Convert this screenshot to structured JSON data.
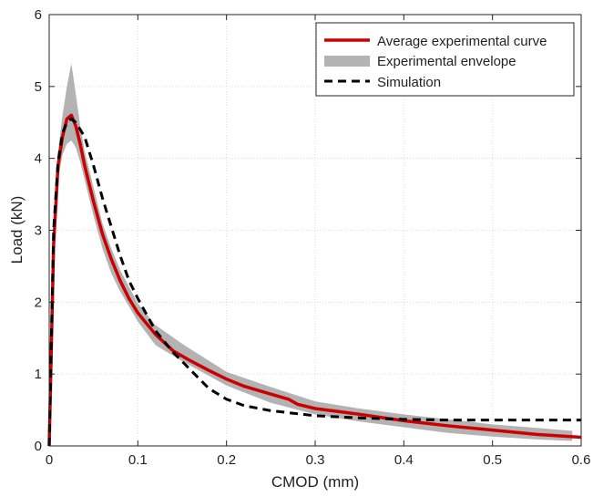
{
  "chart_data": {
    "type": "line",
    "title": "",
    "xlabel": "CMOD (mm)",
    "ylabel": "Load (kN)",
    "xlim": [
      0,
      0.6
    ],
    "ylim": [
      0,
      6
    ],
    "xticks": [
      0,
      0.1,
      0.2,
      0.3,
      0.4,
      0.5,
      0.6
    ],
    "yticks": [
      0,
      1,
      2,
      3,
      4,
      5,
      6
    ],
    "xtick_labels": [
      "0",
      "0.1",
      "0.2",
      "0.3",
      "0.4",
      "0.5",
      "0.6"
    ],
    "ytick_labels": [
      "0",
      "1",
      "2",
      "3",
      "4",
      "5",
      "6"
    ],
    "grid": true,
    "legend_position": "top-right",
    "series": [
      {
        "name": "Average experimental curve",
        "style": "solid",
        "color": "#cc0000",
        "x": [
          0,
          0.005,
          0.01,
          0.015,
          0.02,
          0.025,
          0.03,
          0.035,
          0.04,
          0.05,
          0.06,
          0.07,
          0.08,
          0.09,
          0.1,
          0.12,
          0.14,
          0.16,
          0.18,
          0.2,
          0.22,
          0.25,
          0.27,
          0.28,
          0.3,
          0.35,
          0.4,
          0.45,
          0.5,
          0.55,
          0.6
        ],
        "y": [
          0,
          2.8,
          3.9,
          4.3,
          4.55,
          4.6,
          4.45,
          4.2,
          3.9,
          3.4,
          2.95,
          2.6,
          2.3,
          2.05,
          1.85,
          1.55,
          1.32,
          1.18,
          1.05,
          0.93,
          0.83,
          0.72,
          0.65,
          0.58,
          0.52,
          0.44,
          0.35,
          0.28,
          0.22,
          0.16,
          0.12
        ]
      },
      {
        "name": "Experimental envelope",
        "style": "band",
        "color": "#b3b3b3",
        "x": [
          0,
          0.005,
          0.01,
          0.015,
          0.02,
          0.025,
          0.03,
          0.035,
          0.04,
          0.05,
          0.06,
          0.07,
          0.08,
          0.1,
          0.12,
          0.15,
          0.2,
          0.25,
          0.3,
          0.35,
          0.4,
          0.45,
          0.5,
          0.55,
          0.59
        ],
        "upper": [
          0,
          3.0,
          4.1,
          4.6,
          5.0,
          5.32,
          4.9,
          4.45,
          4.1,
          3.6,
          3.1,
          2.75,
          2.45,
          1.98,
          1.68,
          1.42,
          1.03,
          0.82,
          0.62,
          0.52,
          0.44,
          0.37,
          0.3,
          0.25,
          0.21
        ],
        "lower": [
          0,
          2.6,
          3.7,
          4.05,
          4.2,
          4.25,
          4.15,
          3.95,
          3.7,
          3.2,
          2.75,
          2.4,
          2.15,
          1.73,
          1.4,
          1.18,
          0.84,
          0.6,
          0.44,
          0.34,
          0.26,
          0.18,
          0.13,
          0.09,
          0.07
        ]
      },
      {
        "name": "Simulation",
        "style": "dashed",
        "color": "#000000",
        "x": [
          0,
          0.005,
          0.01,
          0.015,
          0.02,
          0.025,
          0.03,
          0.04,
          0.05,
          0.06,
          0.07,
          0.08,
          0.09,
          0.1,
          0.12,
          0.14,
          0.16,
          0.18,
          0.2,
          0.22,
          0.25,
          0.3,
          0.35,
          0.4,
          0.45,
          0.5,
          0.55,
          0.6
        ],
        "y": [
          0,
          3.0,
          3.95,
          4.35,
          4.5,
          4.55,
          4.5,
          4.3,
          3.9,
          3.45,
          3.05,
          2.65,
          2.3,
          2.05,
          1.6,
          1.3,
          1.05,
          0.8,
          0.65,
          0.56,
          0.49,
          0.42,
          0.39,
          0.37,
          0.36,
          0.36,
          0.36,
          0.36
        ]
      }
    ]
  }
}
